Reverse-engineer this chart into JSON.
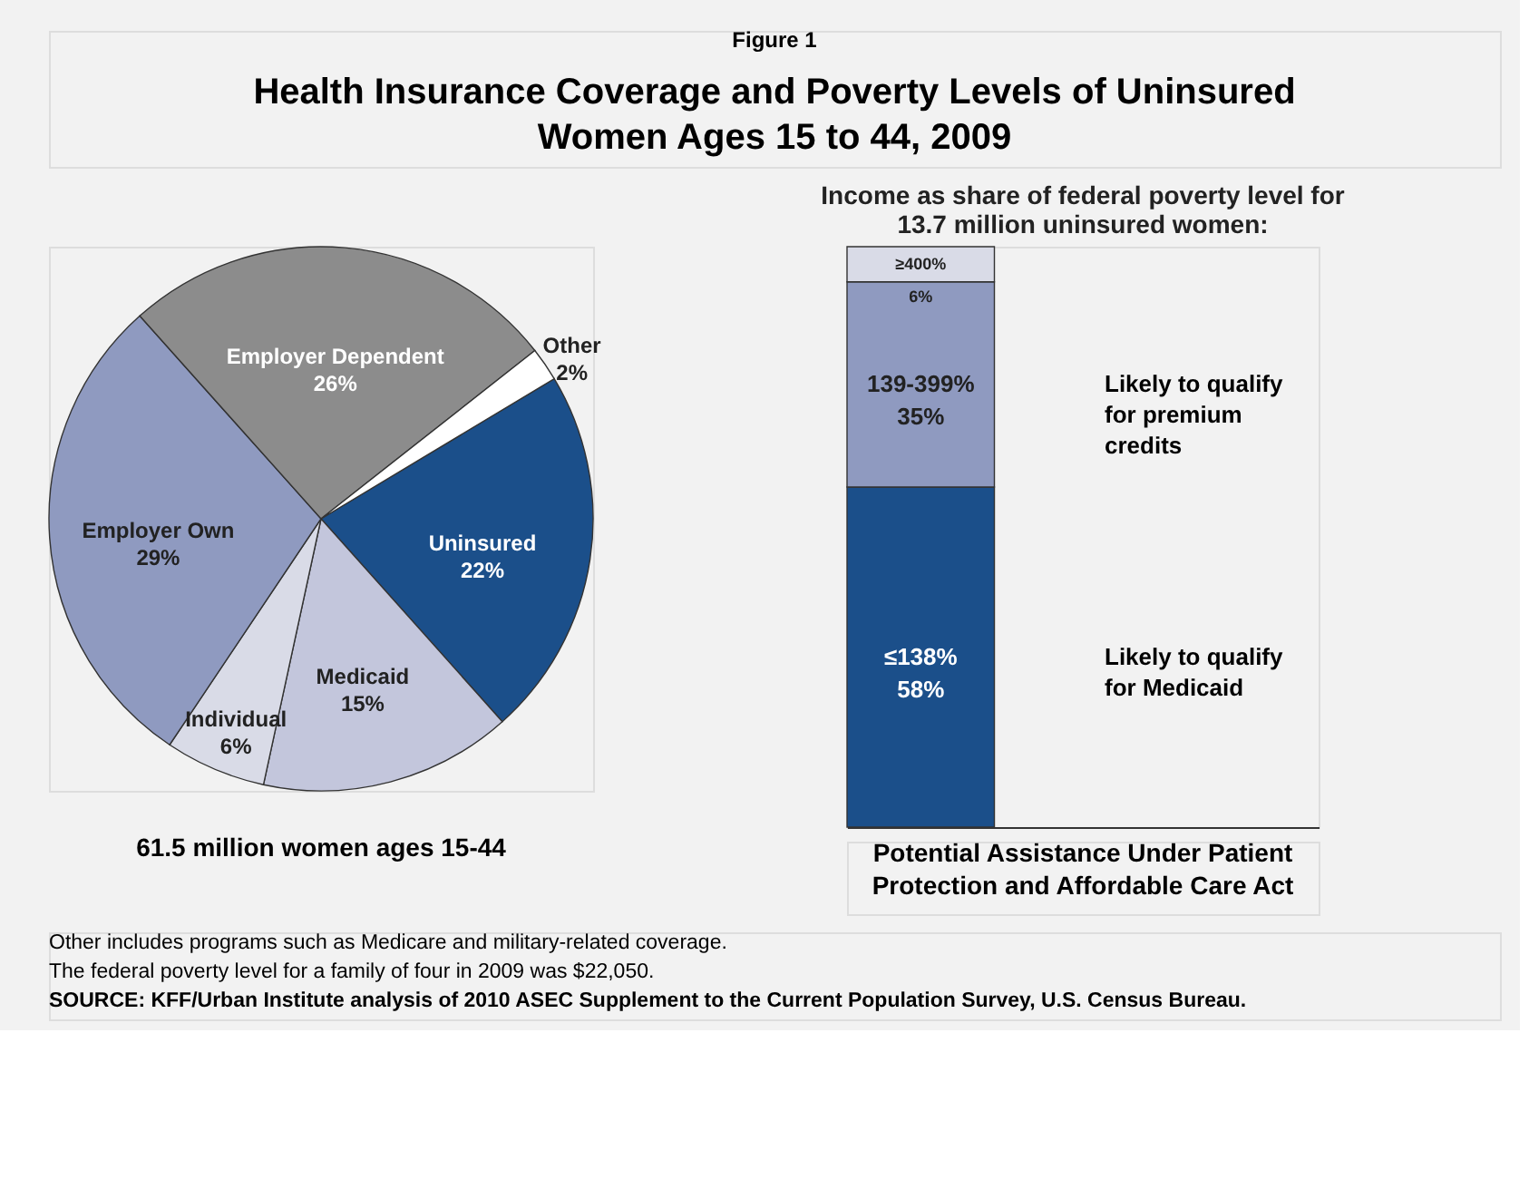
{
  "chart_data": [
    {
      "type": "pie",
      "subtitle": "Figure 1",
      "title": "Health Insurance Coverage and Poverty Levels of Uninsured Women Ages 15 to 44, 2009",
      "categories": [
        "Uninsured",
        "Medicaid",
        "Individual",
        "Employer Own",
        "Employer Dependent",
        "Other"
      ],
      "values": [
        22,
        15,
        6,
        29,
        26,
        2
      ],
      "colors": [
        "#1b4f8a",
        "#c3c6dc",
        "#d9dbe7",
        "#8f9ac0",
        "#8c8c8c",
        "#ffffff"
      ],
      "value_labels": [
        "22%",
        "15%",
        "6%",
        "29%",
        "26%",
        "2%"
      ],
      "annotations": [
        "61.5 million women ages 15-44",
        "Other  includes programs such as Medicare and military-related coverage.",
        "The federal poverty level for a family of four in 2009 was $22,050.",
        "SOURCE: KFF/Urban Institute analysis of 2010 ASEC Supplement to the Current Population Survey, U.S. Census Bureau."
      ]
    },
    {
      "type": "bar",
      "stacked": true,
      "title": "Income as share of federal poverty level for 13.7 million uninsured women:",
      "xlabel": "Potential Assistance Under Patient Protection and Affordable Care Act",
      "categories": [
        null
      ],
      "series": [
        {
          "color": "#1b4f8a",
          "values": [
            58
          ],
          "value_labels": [
            "≤138%\n58%"
          ]
        },
        {
          "color": "#8f9ac0",
          "values": [
            35
          ],
          "value_labels": [
            "139-399%\n35%"
          ]
        },
        {
          "color": "#d9dbe7",
          "values": [
            6
          ],
          "value_labels": [
            "≥400%\n6%"
          ]
        }
      ],
      "annotations": [
        "Likely to qualify for Medicaid",
        "Likely to qualify for premium credits"
      ]
    }
  ]
}
